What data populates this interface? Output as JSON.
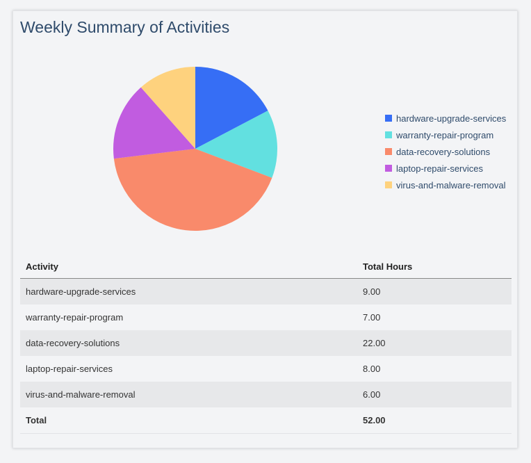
{
  "title": "Weekly Summary of Activities",
  "chart_data": {
    "type": "pie",
    "categories": [
      "hardware-upgrade-services",
      "warranty-repair-program",
      "data-recovery-solutions",
      "laptop-repair-services",
      "virus-and-malware-removal"
    ],
    "values": [
      9,
      7,
      22,
      8,
      6
    ],
    "colors": [
      "#366ef5",
      "#62e0e0",
      "#f98a6b",
      "#c15ce0",
      "#fed27e"
    ],
    "legend_position": "right"
  },
  "table": {
    "headers": [
      "Activity",
      "Total Hours"
    ],
    "rows": [
      [
        "hardware-upgrade-services",
        "9.00"
      ],
      [
        "warranty-repair-program",
        "7.00"
      ],
      [
        "data-recovery-solutions",
        "22.00"
      ],
      [
        "laptop-repair-services",
        "8.00"
      ],
      [
        "virus-and-malware-removal",
        "6.00"
      ]
    ],
    "total": [
      "Total",
      "52.00"
    ]
  }
}
